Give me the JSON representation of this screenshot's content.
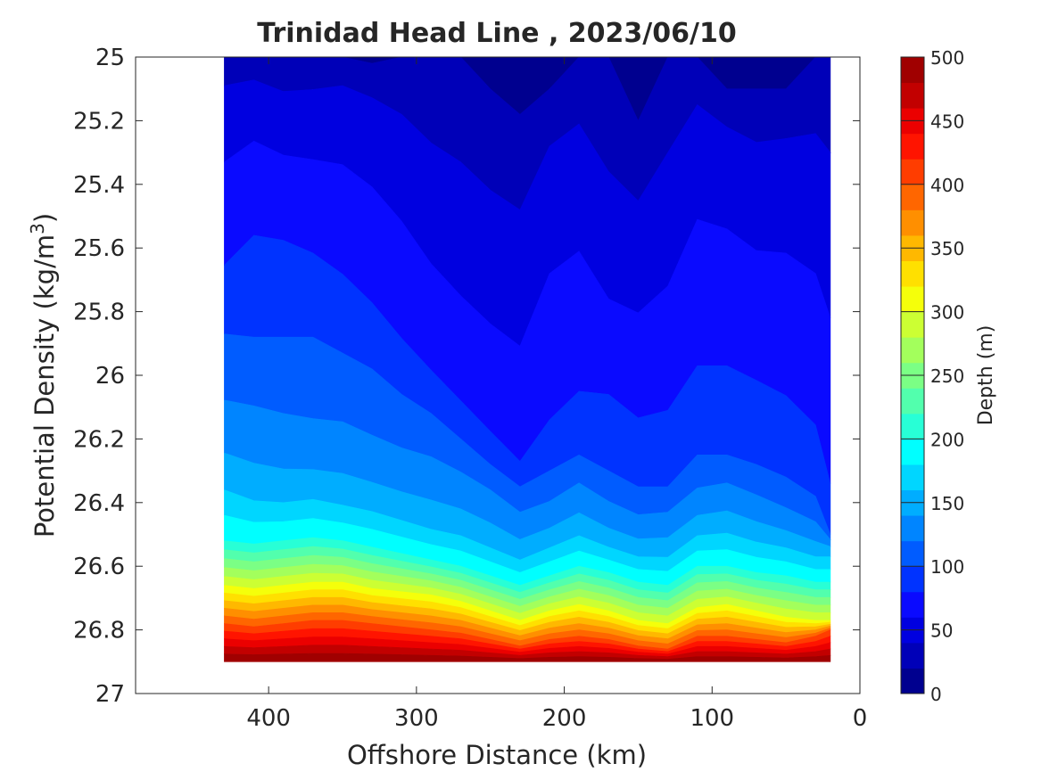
{
  "chart_data": {
    "type": "contour",
    "title": "Trinidad Head Line , 2023/06/10",
    "xlabel": "Offshore Distance (km)",
    "ylabel_main": "Potential Density (kg/m",
    "ylabel_sup": "3",
    "ylabel_close": ")",
    "x_reversed": true,
    "xlim": [
      0,
      490
    ],
    "ylim": [
      25,
      27
    ],
    "y_reversed": true,
    "xticks": [
      400,
      300,
      200,
      100,
      0
    ],
    "yticks": [
      25,
      25.2,
      25.4,
      25.6,
      25.8,
      26,
      26.2,
      26.4,
      26.6,
      26.8,
      27
    ],
    "ytick_labels": [
      "25",
      "25.2",
      "25.4",
      "25.6",
      "25.8",
      "26",
      "26.2",
      "26.4",
      "26.6",
      "26.8",
      "27"
    ],
    "colorbar": {
      "label": "Depth (m)",
      "lim": [
        0,
        500
      ],
      "ticks": [
        0,
        50,
        100,
        150,
        200,
        250,
        300,
        350,
        400,
        450,
        500
      ],
      "levels": [
        0,
        25,
        50,
        75,
        100,
        125,
        150,
        175,
        200,
        225,
        250,
        275,
        300,
        325,
        350,
        375,
        400,
        425,
        450,
        475,
        500
      ],
      "colors": [
        "#00008f",
        "#0000b8",
        "#0000e0",
        "#0a0aff",
        "#0033ff",
        "#005cff",
        "#0085ff",
        "#00adff",
        "#00d6ff",
        "#00ffff",
        "#28ffd6",
        "#52ffad",
        "#7bff85",
        "#a3ff5c",
        "#ccff33",
        "#f5ff0a",
        "#ffe000",
        "#ffb800",
        "#ff8f00",
        "#ff6600",
        "#ff3d00",
        "#ff1400",
        "#eb0000",
        "#c20000",
        "#a00000"
      ]
    },
    "stations_km": [
      430,
      410,
      390,
      370,
      350,
      330,
      310,
      290,
      270,
      250,
      230,
      210,
      190,
      170,
      150,
      130,
      110,
      90,
      70,
      50,
      30,
      20
    ],
    "depth_isolines": [
      {
        "depth": 25,
        "density": [
          25.0,
          25.0,
          25.0,
          25.0,
          25.0,
          25.02,
          25.0,
          25.0,
          25.0,
          25.1,
          25.18,
          25.1,
          25.0,
          25.0,
          25.2,
          25.0,
          25.0,
          25.1,
          25.1,
          25.1,
          25.0,
          25.0
        ]
      },
      {
        "depth": 50,
        "density": [
          25.15,
          25.12,
          25.18,
          25.17,
          25.15,
          25.2,
          25.3,
          25.45,
          25.55,
          25.63,
          25.68,
          25.4,
          25.35,
          25.6,
          25.62,
          25.5,
          25.25,
          25.3,
          25.38,
          25.36,
          25.4,
          25.5
        ]
      },
      {
        "depth": 75,
        "density": [
          25.6,
          25.48,
          25.5,
          25.55,
          25.62,
          25.72,
          25.84,
          25.95,
          26.05,
          26.15,
          26.25,
          26.1,
          26.0,
          26.0,
          26.08,
          26.05,
          25.9,
          25.9,
          25.95,
          26.0,
          26.1,
          26.3
        ]
      },
      {
        "depth": 100,
        "density": [
          25.87,
          25.88,
          25.88,
          25.88,
          25.93,
          25.98,
          26.06,
          26.12,
          26.2,
          26.28,
          26.35,
          26.3,
          26.25,
          26.3,
          26.35,
          26.35,
          26.25,
          26.25,
          26.28,
          26.32,
          26.38,
          26.5
        ]
      },
      {
        "depth": 125,
        "density": [
          26.13,
          26.15,
          26.18,
          26.2,
          26.2,
          26.24,
          26.27,
          26.29,
          26.33,
          26.38,
          26.45,
          26.42,
          26.36,
          26.42,
          26.46,
          26.45,
          26.38,
          26.36,
          26.4,
          26.44,
          26.48,
          26.52
        ]
      },
      {
        "depth": 150,
        "density": [
          26.32,
          26.36,
          26.37,
          26.36,
          26.38,
          26.4,
          26.43,
          26.46,
          26.48,
          26.52,
          26.56,
          26.52,
          26.48,
          26.52,
          26.55,
          26.55,
          26.48,
          26.47,
          26.5,
          26.52,
          26.55,
          26.55
        ]
      },
      {
        "depth": 200,
        "density": [
          26.52,
          26.53,
          26.52,
          26.51,
          26.52,
          26.54,
          26.56,
          26.58,
          26.6,
          26.63,
          26.66,
          26.63,
          26.6,
          26.62,
          26.65,
          26.66,
          26.6,
          26.6,
          26.62,
          26.63,
          26.65,
          26.65
        ]
      },
      {
        "depth": 300,
        "density": [
          26.66,
          26.67,
          26.66,
          26.65,
          26.65,
          26.67,
          26.68,
          26.69,
          26.71,
          26.74,
          26.77,
          26.74,
          26.72,
          26.74,
          26.77,
          26.78,
          26.73,
          26.72,
          26.74,
          26.76,
          26.77,
          26.77
        ]
      },
      {
        "depth": 400,
        "density": [
          26.78,
          26.79,
          26.78,
          26.77,
          26.77,
          26.78,
          26.79,
          26.8,
          26.81,
          26.83,
          26.85,
          26.83,
          26.82,
          26.83,
          26.85,
          26.86,
          26.82,
          26.82,
          26.83,
          26.84,
          26.82,
          26.8
        ]
      },
      {
        "depth": 500,
        "density": [
          26.9,
          26.9,
          26.9,
          26.9,
          26.9,
          26.9,
          26.9,
          26.9,
          26.9,
          26.9,
          26.9,
          26.9,
          26.9,
          26.9,
          26.9,
          26.9,
          26.9,
          26.9,
          26.9,
          26.9,
          26.9,
          26.9
        ]
      }
    ]
  }
}
